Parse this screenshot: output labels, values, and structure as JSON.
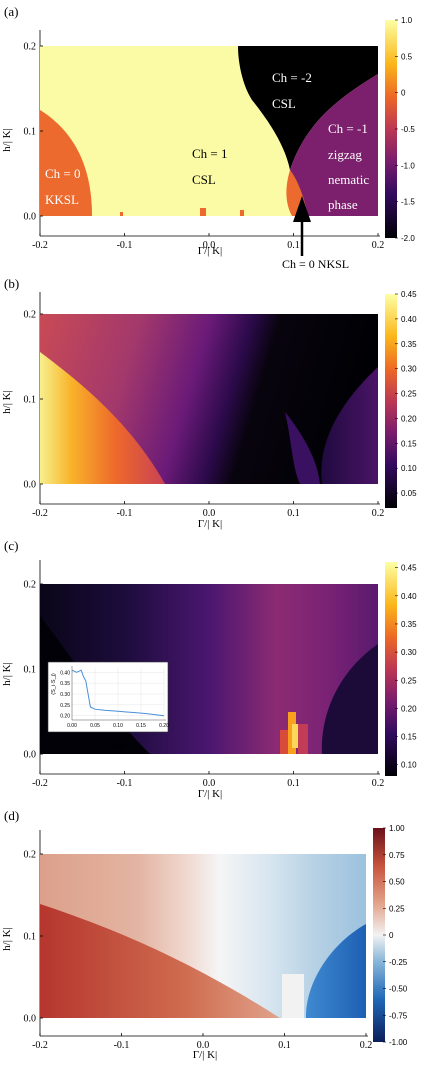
{
  "chart_data": [
    {
      "type": "heatmap",
      "panel_label": "(a)",
      "xlabel": "Γ/| K|",
      "ylabel": "h/| K|",
      "xlim": [
        -0.2,
        0.2
      ],
      "ylim": [
        0.0,
        0.2
      ],
      "x_ticks": [
        "-0.2",
        "-0.1",
        "0.0",
        "0.1",
        "0.2"
      ],
      "y_ticks": [
        "0.0",
        "0.1",
        "0.2"
      ],
      "colorbar": {
        "min": -2.0,
        "max": 1.0,
        "ticks": [
          "1.0",
          "0.5",
          "0",
          "-0.5",
          "-1.0",
          "-1.5",
          "-2.0"
        ]
      },
      "regions": [
        {
          "label_line1": "Ch = 0",
          "label_line2": "KKSL",
          "value": 0,
          "color": "#ec6a2e"
        },
        {
          "label_line1": "Ch = 1",
          "label_line2": "CSL",
          "value": 1,
          "color": "#fbfba6"
        },
        {
          "label_line1": "Ch = -2",
          "label_line2": "CSL",
          "value": -2,
          "color": "#000000"
        },
        {
          "label_line1": "Ch = -1",
          "label_line2": "zigzag",
          "label_line3": "nematic",
          "label_line4": "phase",
          "value": -1,
          "color": "#7c1f6d"
        }
      ],
      "annotation": "Ch = 0 NKSL"
    },
    {
      "type": "heatmap",
      "panel_label": "(b)",
      "xlabel": "Γ/| K|",
      "ylabel": "h/| K|",
      "xlim": [
        -0.2,
        0.2
      ],
      "ylim": [
        0.0,
        0.2
      ],
      "x_ticks": [
        "-0.2",
        "-0.1",
        "0.0",
        "0.1",
        "0.2"
      ],
      "y_ticks": [
        "0.0",
        "0.1",
        "0.2"
      ],
      "colorbar": {
        "min": 0.02,
        "max": 0.45,
        "ticks": [
          "0.45",
          "0.40",
          "0.35",
          "0.30",
          "0.25",
          "0.20",
          "0.15",
          "0.10",
          "0.05"
        ]
      }
    },
    {
      "type": "heatmap",
      "panel_label": "(c)",
      "xlabel": "Γ/| K|",
      "ylabel": "h/| K|",
      "xlim": [
        -0.2,
        0.2
      ],
      "ylim": [
        0.0,
        0.2
      ],
      "x_ticks": [
        "-0.2",
        "-0.1",
        "0.0",
        "0.1",
        "0.2"
      ],
      "y_ticks": [
        "0.0",
        "0.1",
        "0.2"
      ],
      "colorbar": {
        "min": 0.08,
        "max": 0.46,
        "ticks": [
          "0.45",
          "0.40",
          "0.35",
          "0.30",
          "0.25",
          "0.20",
          "0.15",
          "0.10"
        ]
      },
      "inset": {
        "type": "line",
        "xlabel": "h/| K|",
        "ylabel": "⟨S_i·S_j⟩",
        "xlim": [
          0.0,
          0.2
        ],
        "ylim": [
          0.18,
          0.42
        ],
        "x_ticks": [
          "0.00",
          "0.05",
          "0.10",
          "0.15",
          "0.20"
        ],
        "y_ticks": [
          "0.40",
          "0.35",
          "0.30",
          "0.25",
          "0.20"
        ],
        "x": [
          0.0,
          0.01,
          0.02,
          0.025,
          0.03,
          0.035,
          0.04,
          0.05,
          0.07,
          0.1,
          0.13,
          0.16,
          0.2
        ],
        "y": [
          0.41,
          0.4,
          0.41,
          0.38,
          0.36,
          0.3,
          0.24,
          0.23,
          0.225,
          0.22,
          0.215,
          0.21,
          0.2
        ]
      }
    },
    {
      "type": "heatmap",
      "panel_label": "(d)",
      "xlabel": "Γ/| K|",
      "ylabel": "h/| K|",
      "xlim": [
        -0.2,
        0.2
      ],
      "ylim": [
        0.0,
        0.2
      ],
      "x_ticks": [
        "-0.2",
        "-0.1",
        "0.0",
        "0.1",
        "0.2"
      ],
      "y_ticks": [
        "0.0",
        "0.1",
        "0.2"
      ],
      "colorbar": {
        "min": -1.0,
        "max": 1.0,
        "ticks": [
          "1.00",
          "0.75",
          "0.50",
          "0.25",
          "0",
          "-0.25",
          "-0.50",
          "-0.75",
          "-1.00"
        ]
      }
    }
  ]
}
